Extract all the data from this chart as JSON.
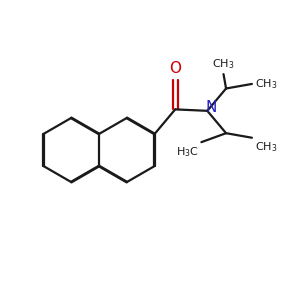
{
  "bg_color": "#ffffff",
  "bond_color": "#1a1a1a",
  "oxygen_color": "#cc0000",
  "nitrogen_color": "#2222cc",
  "line_width": 1.6,
  "figsize": [
    3.0,
    3.0
  ],
  "dpi": 100
}
